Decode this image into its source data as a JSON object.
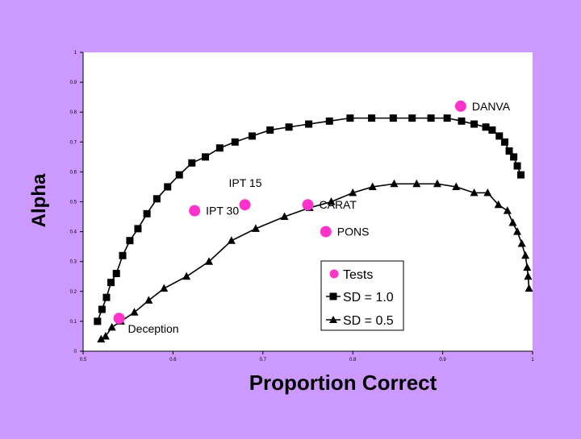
{
  "colors": {
    "slide_background": "#cc99ff",
    "plot_background": "#ffffff",
    "series_color": "#000000",
    "tests_marker": "#ff33cc"
  },
  "chart_data": {
    "type": "scatter",
    "xlabel": "Proportion Correct",
    "ylabel": "Alpha",
    "xlim": [
      0.5,
      1
    ],
    "ylim": [
      0,
      1
    ],
    "x_ticks": [
      "0.5",
      "0.6",
      "0.7",
      "0.8",
      "0.9",
      "1"
    ],
    "y_ticks": [
      "0",
      "0.1",
      "0.2",
      "0.3",
      "0.4",
      "0.5",
      "0.6",
      "0.7",
      "0.8",
      "0.9",
      "1"
    ],
    "grid": false,
    "legend_placement": "bottom-right",
    "legend": [
      "Tests",
      "SD = 1.0",
      "SD = 0.5"
    ],
    "series": [
      {
        "name": "SD = 1.0",
        "marker": "square",
        "line": true,
        "x": [
          0.516,
          0.521,
          0.526,
          0.531,
          0.537,
          0.544,
          0.552,
          0.561,
          0.571,
          0.582,
          0.594,
          0.607,
          0.621,
          0.636,
          0.652,
          0.669,
          0.688,
          0.708,
          0.729,
          0.751,
          0.774,
          0.797,
          0.821,
          0.845,
          0.866,
          0.887,
          0.905,
          0.921,
          0.935,
          0.948,
          0.955,
          0.963,
          0.969,
          0.974,
          0.979,
          0.983,
          0.987
        ],
        "y": [
          0.1,
          0.14,
          0.18,
          0.23,
          0.26,
          0.32,
          0.37,
          0.41,
          0.46,
          0.51,
          0.55,
          0.59,
          0.63,
          0.65,
          0.68,
          0.7,
          0.72,
          0.74,
          0.75,
          0.76,
          0.77,
          0.78,
          0.78,
          0.78,
          0.78,
          0.78,
          0.78,
          0.77,
          0.76,
          0.75,
          0.74,
          0.72,
          0.7,
          0.67,
          0.65,
          0.62,
          0.59
        ]
      },
      {
        "name": "SD = 0.5",
        "marker": "triangle",
        "line": true,
        "x": [
          0.52,
          0.525,
          0.532,
          0.542,
          0.557,
          0.573,
          0.59,
          0.615,
          0.64,
          0.665,
          0.692,
          0.724,
          0.752,
          0.776,
          0.8,
          0.822,
          0.846,
          0.871,
          0.894,
          0.915,
          0.935,
          0.95,
          0.962,
          0.972,
          0.978,
          0.983,
          0.988,
          0.992,
          0.994,
          0.995,
          0.996
        ],
        "y": [
          0.04,
          0.05,
          0.08,
          0.1,
          0.13,
          0.17,
          0.21,
          0.25,
          0.3,
          0.37,
          0.41,
          0.45,
          0.48,
          0.5,
          0.53,
          0.55,
          0.56,
          0.56,
          0.56,
          0.55,
          0.53,
          0.53,
          0.49,
          0.47,
          0.43,
          0.4,
          0.36,
          0.32,
          0.28,
          0.25,
          0.21
        ]
      },
      {
        "name": "Tests",
        "marker": "circle",
        "line": false,
        "points": [
          {
            "label": "DANVA",
            "x": 0.92,
            "y": 0.82
          },
          {
            "label": "IPT 15",
            "x": 0.68,
            "y": 0.49
          },
          {
            "label": "IPT 30",
            "x": 0.624,
            "y": 0.47
          },
          {
            "label": "CARAT",
            "x": 0.75,
            "y": 0.49
          },
          {
            "label": "PONS",
            "x": 0.77,
            "y": 0.4
          },
          {
            "label": "Deception",
            "x": 0.54,
            "y": 0.11
          }
        ]
      }
    ]
  }
}
